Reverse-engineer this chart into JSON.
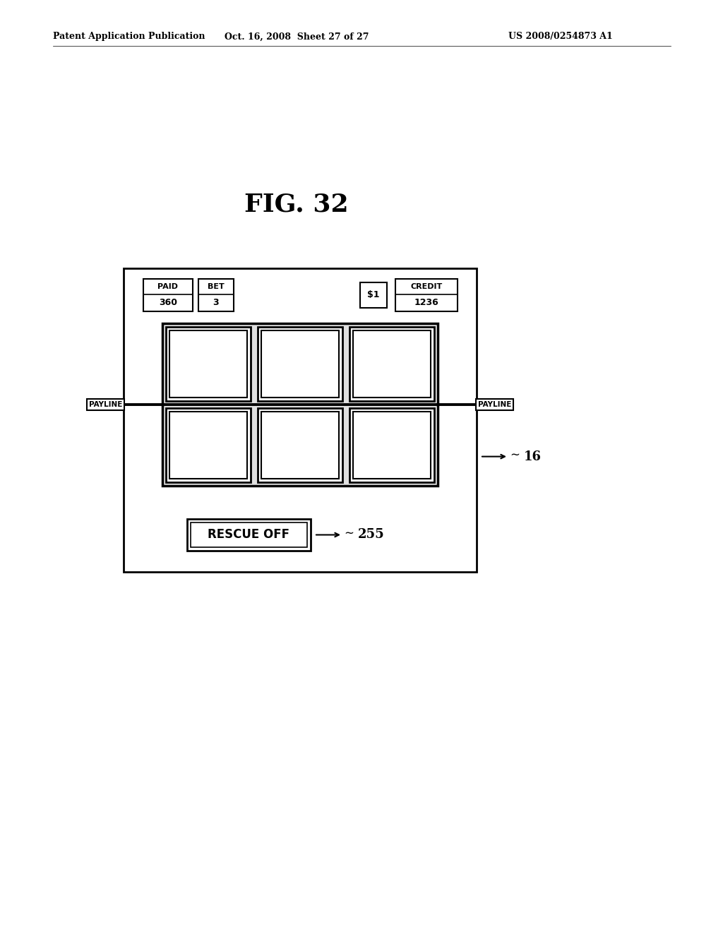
{
  "title": "FIG. 32",
  "header_left": "Patent Application Publication",
  "header_mid": "Oct. 16, 2008  Sheet 27 of 27",
  "header_right": "US 2008/0254873 A1",
  "bg_color": "#ffffff",
  "paid_label": "PAID",
  "paid_value": "360",
  "bet_label": "BET",
  "bet_value": "3",
  "dollar_label": "$1",
  "credit_label": "CREDIT",
  "credit_value": "1236",
  "payline_left": "PAYLINE",
  "payline_right": "PAYLINE",
  "rescue_label": "RESCUE OFF",
  "ref_16": "16",
  "ref_255": "255"
}
